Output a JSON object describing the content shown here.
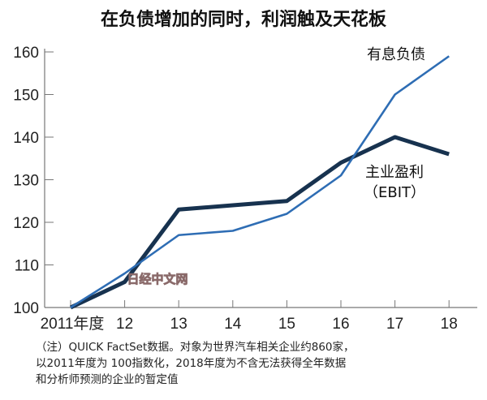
{
  "chart_data": {
    "type": "line",
    "title": "在负债增加的同时，利润触及天花板",
    "categories": [
      "2011年度",
      "12",
      "13",
      "14",
      "15",
      "16",
      "17",
      "18"
    ],
    "ylim": [
      100,
      160
    ],
    "yticks": [
      "100",
      "110",
      "120",
      "130",
      "140",
      "150",
      "160"
    ],
    "grid": false,
    "series": [
      {
        "name": "有息负债",
        "values": [
          100,
          108,
          117,
          118,
          122,
          131,
          150,
          159
        ],
        "color": "#2e6db4"
      },
      {
        "name": "主业盈利",
        "name2": "（EBIT）",
        "values": [
          100,
          106,
          123,
          124,
          125,
          134,
          140,
          136
        ],
        "color": "#17324f"
      }
    ],
    "watermark": "日经中文网",
    "notes": [
      "（注）QUICK FactSet数据。对象为世界汽车相关企业约860家，",
      "以2011年度为 100指数化，2018年度为不含无法获得全年数据",
      "和分析师预测的企业的暂定值"
    ]
  }
}
